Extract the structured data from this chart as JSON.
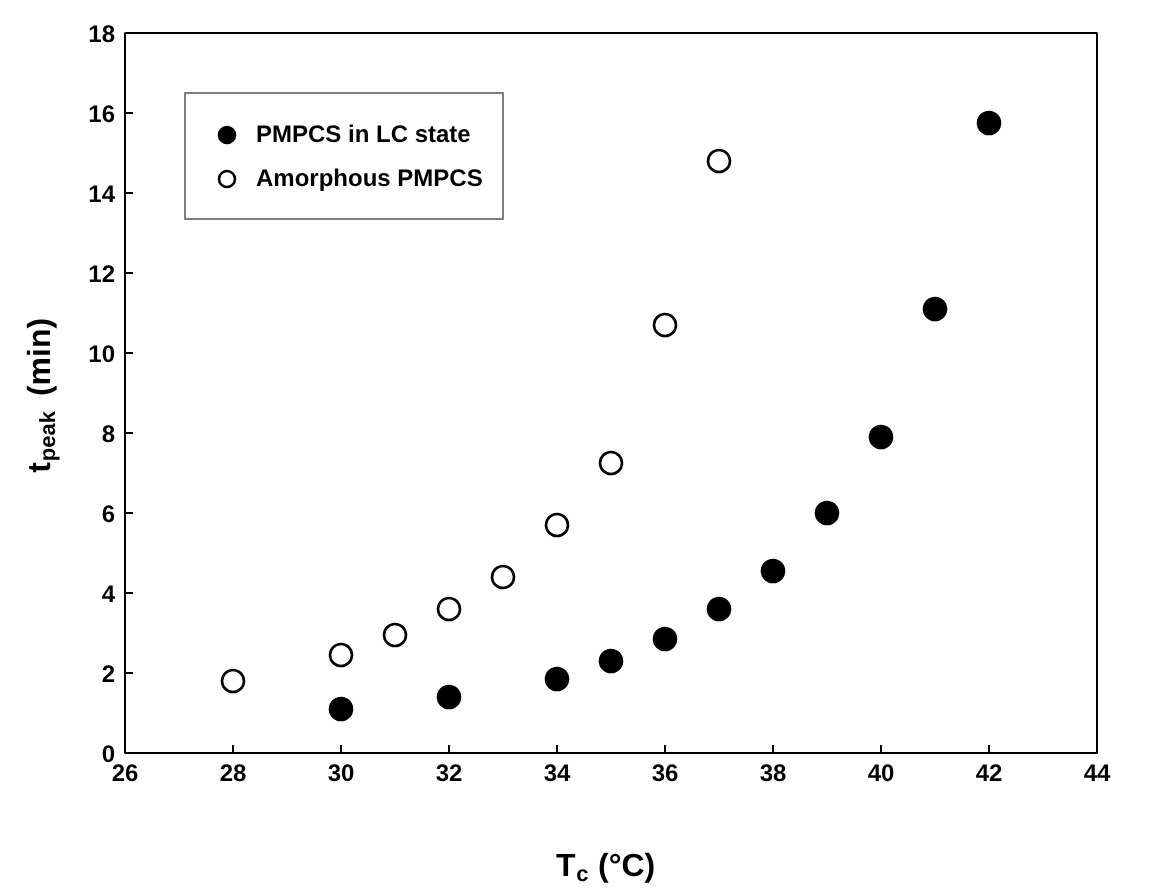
{
  "chart_data": {
    "type": "scatter",
    "xlabel": "T$_{c}$ (°C)",
    "ylabel": "t$_{peak}$ (min)",
    "xlim": [
      26,
      44
    ],
    "ylim": [
      0,
      18
    ],
    "xticks": [
      26,
      28,
      30,
      32,
      34,
      36,
      38,
      40,
      42,
      44
    ],
    "yticks": [
      0,
      2,
      4,
      6,
      8,
      10,
      12,
      14,
      16,
      18
    ],
    "grid": false,
    "legend": "top left",
    "marker": "circle",
    "series": [
      {
        "name": "PMPCS in LC state",
        "color": "#000000",
        "x": [
          30,
          32,
          34,
          35,
          36,
          37,
          38,
          39,
          40,
          41,
          42
        ],
        "values": [
          1.1,
          1.4,
          1.85,
          2.3,
          2.85,
          3.6,
          4.55,
          6.0,
          7.9,
          11.1,
          15.75
        ]
      },
      {
        "name": "Amorphous PMPCS",
        "color": "#ffffff",
        "x": [
          28,
          30,
          31,
          32,
          33,
          34,
          35,
          36,
          37
        ],
        "values": [
          1.8,
          2.45,
          2.95,
          3.6,
          4.4,
          5.7,
          7.25,
          10.7,
          14.8
        ]
      }
    ]
  }
}
